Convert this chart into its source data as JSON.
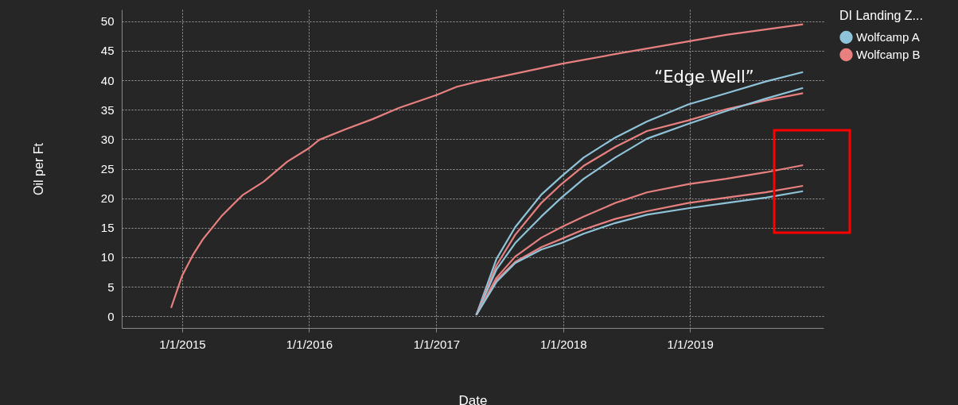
{
  "chart_data": {
    "type": "line",
    "xlabel": "Date",
    "ylabel": "Oil per Ft",
    "legend_title": "DI Landing Z...",
    "legend": "top right",
    "grid": true,
    "marker": "none",
    "line_style": "solid",
    "xlim": [
      "2014-07-11",
      "2020-01-20"
    ],
    "ylim": [
      -2,
      52
    ],
    "xticks": [
      {
        "value": "2015-01-01",
        "label": "1/1/2015"
      },
      {
        "value": "2016-01-01",
        "label": "1/1/2016"
      },
      {
        "value": "2017-01-01",
        "label": "1/1/2017"
      },
      {
        "value": "2018-01-01",
        "label": "1/1/2018"
      },
      {
        "value": "2019-01-01",
        "label": "1/1/2019"
      }
    ],
    "yticks": [
      0,
      5,
      10,
      15,
      20,
      25,
      30,
      35,
      40,
      45,
      50
    ],
    "x": [
      "2017-04-26",
      "2017-06-23",
      "2017-08-16",
      "2017-10-30",
      "2017-12-27",
      "2018-03-01",
      "2018-05-31",
      "2018-08-30",
      "2018-12-27",
      "2019-04-15",
      "2019-08-07",
      "2019-11-22"
    ],
    "annotations": [
      "“Edge Well”"
    ],
    "series": [
      {
        "name": "Wolfcamp A",
        "color": "#8fc3d9",
        "values": [
          0.2,
          9.7,
          15.1,
          20.6,
          23.7,
          26.9,
          30.3,
          33.0,
          35.9,
          37.8,
          39.8,
          41.4
        ]
      },
      {
        "name": "Wolfcamp B",
        "color": "#e88080",
        "x": [
          "2014-11-30",
          "2015-01-01",
          "2015-01-31",
          "2015-03-01",
          "2015-04-26",
          "2015-06-23",
          "2015-08-23",
          "2015-10-30",
          "2016-01-01",
          "2016-01-30",
          "2016-04-15",
          "2016-07-01",
          "2016-09-15",
          "2017-01-01",
          "2017-03-01",
          "2017-05-01",
          "2017-12-27",
          "2018-06-15",
          "2018-12-27",
          "2019-04-15",
          "2019-11-22"
        ],
        "values": [
          1.4,
          6.9,
          10.3,
          13,
          17.1,
          20.5,
          22.8,
          26.2,
          28.5,
          29.9,
          31.7,
          33.4,
          35.3,
          37.5,
          38.9,
          39.8,
          42.8,
          44.6,
          46.6,
          47.7,
          49.5
        ]
      },
      {
        "color": "#e88080",
        "values": [
          0.2,
          8.6,
          13.8,
          19.2,
          22.4,
          25.5,
          28.7,
          31.4,
          33.2,
          35.1,
          36.6,
          37.8
        ]
      },
      {
        "color": "#8fc3d9",
        "values": [
          0.2,
          7.9,
          12.4,
          16.9,
          20.1,
          23.3,
          26.9,
          30.1,
          32.6,
          34.8,
          36.9,
          38.7
        ]
      },
      {
        "color": "#e88080",
        "values": [
          0.2,
          6.5,
          10.1,
          13.3,
          15.1,
          16.9,
          19.2,
          21.0,
          22.4,
          23.3,
          24.4,
          25.6
        ]
      },
      {
        "color": "#e88080",
        "values": [
          0.2,
          6.1,
          9.2,
          11.7,
          13.1,
          14.7,
          16.5,
          17.8,
          19.2,
          20.1,
          21.0,
          22.1
        ]
      },
      {
        "color": "#8fc3d9",
        "values": [
          0.2,
          5.8,
          9.0,
          11.3,
          12.4,
          14.0,
          15.8,
          17.2,
          18.3,
          19.2,
          20.1,
          21.2
        ]
      }
    ]
  }
}
